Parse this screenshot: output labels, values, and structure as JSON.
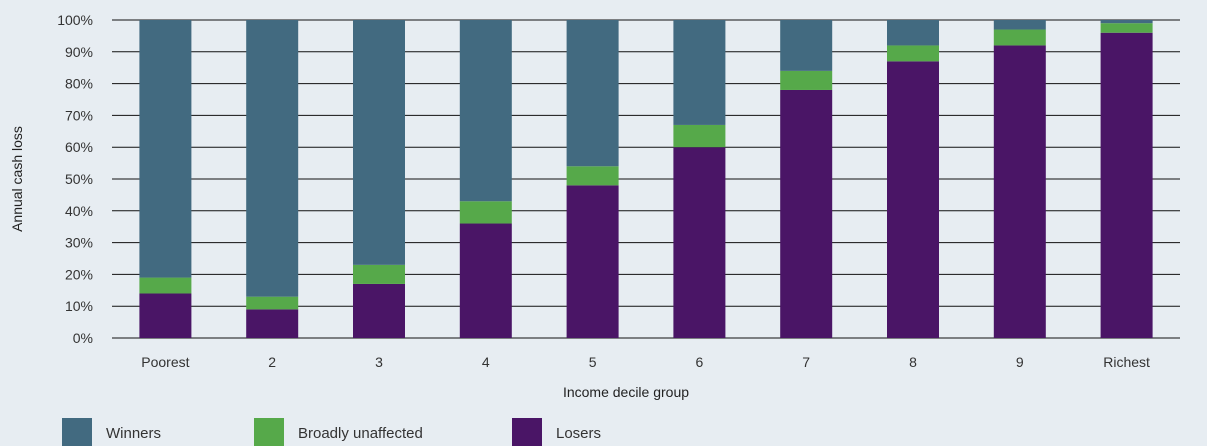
{
  "chart_data": {
    "type": "bar",
    "stacked": true,
    "ylabel": "Annual cash loss",
    "xlabel": "Income decile group",
    "ylim": [
      0,
      100
    ],
    "yticks": [
      "0%",
      "10%",
      "20%",
      "30%",
      "40%",
      "50%",
      "60%",
      "70%",
      "80%",
      "90%",
      "100%"
    ],
    "categories": [
      "Poorest",
      "2",
      "3",
      "4",
      "5",
      "6",
      "7",
      "8",
      "9",
      "Richest"
    ],
    "series": [
      {
        "name": "Losers",
        "color": "#4a1566",
        "values": [
          14,
          9,
          17,
          36,
          48,
          60,
          78,
          87,
          92,
          96
        ]
      },
      {
        "name": "Broadly unaffected",
        "color": "#56a94a",
        "values": [
          5,
          4,
          6,
          7,
          6,
          7,
          6,
          5,
          5,
          3
        ]
      },
      {
        "name": "Winners",
        "color": "#426a80",
        "values": [
          81,
          87,
          77,
          57,
          46,
          33,
          16,
          8,
          3,
          1
        ]
      }
    ],
    "legend": [
      "Winners",
      "Broadly unaffected",
      "Losers"
    ],
    "legend_position": "bottom",
    "grid": true
  }
}
